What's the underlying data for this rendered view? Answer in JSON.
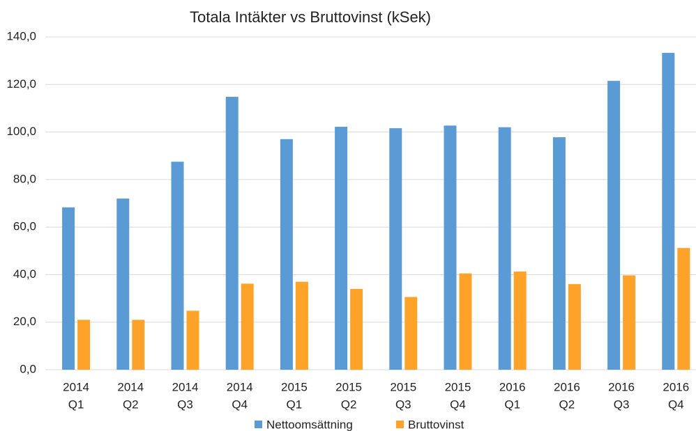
{
  "chart_data": {
    "type": "bar",
    "title": "Totala Intäkter vs Bruttovinst (kSek)",
    "categories": [
      [
        "2014",
        "Q1"
      ],
      [
        "2014",
        "Q2"
      ],
      [
        "2014",
        "Q3"
      ],
      [
        "2014",
        "Q4"
      ],
      [
        "2015",
        "Q1"
      ],
      [
        "2015",
        "Q2"
      ],
      [
        "2015",
        "Q3"
      ],
      [
        "2015",
        "Q4"
      ],
      [
        "2016",
        "Q1"
      ],
      [
        "2016",
        "Q2"
      ],
      [
        "2016",
        "Q3"
      ],
      [
        "2016",
        "Q4"
      ]
    ],
    "series": [
      {
        "name": "Nettoomsättning",
        "color": "#5b9bd5",
        "values": [
          68.3,
          72,
          87.5,
          114.8,
          97,
          102.2,
          101.6,
          102.7,
          102,
          97.8,
          121.5,
          133.3
        ]
      },
      {
        "name": "Bruttovinst",
        "color": "#ffa229",
        "values": [
          21,
          21,
          24.8,
          36.2,
          37,
          34,
          30.6,
          40.5,
          41.3,
          36,
          39.7,
          51.2
        ]
      }
    ],
    "ylim": [
      0,
      140
    ],
    "yticks": [
      {
        "value": 0,
        "label": "0,0"
      },
      {
        "value": 20,
        "label": "20,0"
      },
      {
        "value": 40,
        "label": "40,0"
      },
      {
        "value": 60,
        "label": "60,0"
      },
      {
        "value": 80,
        "label": "80,0"
      },
      {
        "value": 100,
        "label": "100,0"
      },
      {
        "value": 120,
        "label": "120,0"
      },
      {
        "value": 140,
        "label": "140,0"
      }
    ],
    "grid": true,
    "legend": "bottom"
  }
}
